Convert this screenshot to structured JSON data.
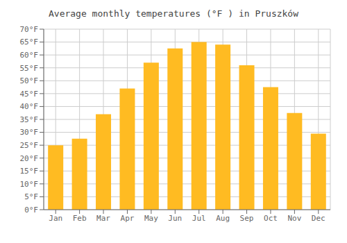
{
  "chart_data": {
    "type": "bar",
    "title": "Average monthly temperatures (°F ) in Pruszków",
    "categories": [
      "Jan",
      "Feb",
      "Mar",
      "Apr",
      "May",
      "Jun",
      "Jul",
      "Aug",
      "Sep",
      "Oct",
      "Nov",
      "Dec"
    ],
    "values": [
      25,
      27.5,
      37,
      47,
      57,
      62.5,
      65,
      64,
      56,
      47.5,
      37.5,
      29.5
    ],
    "color": "#FFBB22",
    "ylim": [
      0,
      70
    ],
    "yticks": [
      {
        "value": 0,
        "label": "0°F"
      },
      {
        "value": 5,
        "label": "5°F"
      },
      {
        "value": 10,
        "label": "10°F"
      },
      {
        "value": 15,
        "label": "15°F"
      },
      {
        "value": 20,
        "label": "20°F"
      },
      {
        "value": 25,
        "label": "25°F"
      },
      {
        "value": 30,
        "label": "30°F"
      },
      {
        "value": 35,
        "label": "35°F"
      },
      {
        "value": 40,
        "label": "40°F"
      },
      {
        "value": 45,
        "label": "45°F"
      },
      {
        "value": 50,
        "label": "50°F"
      },
      {
        "value": 55,
        "label": "55°F"
      },
      {
        "value": 60,
        "label": "60°F"
      },
      {
        "value": 65,
        "label": "65°F"
      },
      {
        "value": 70,
        "label": "70°F"
      }
    ],
    "grid": true
  }
}
